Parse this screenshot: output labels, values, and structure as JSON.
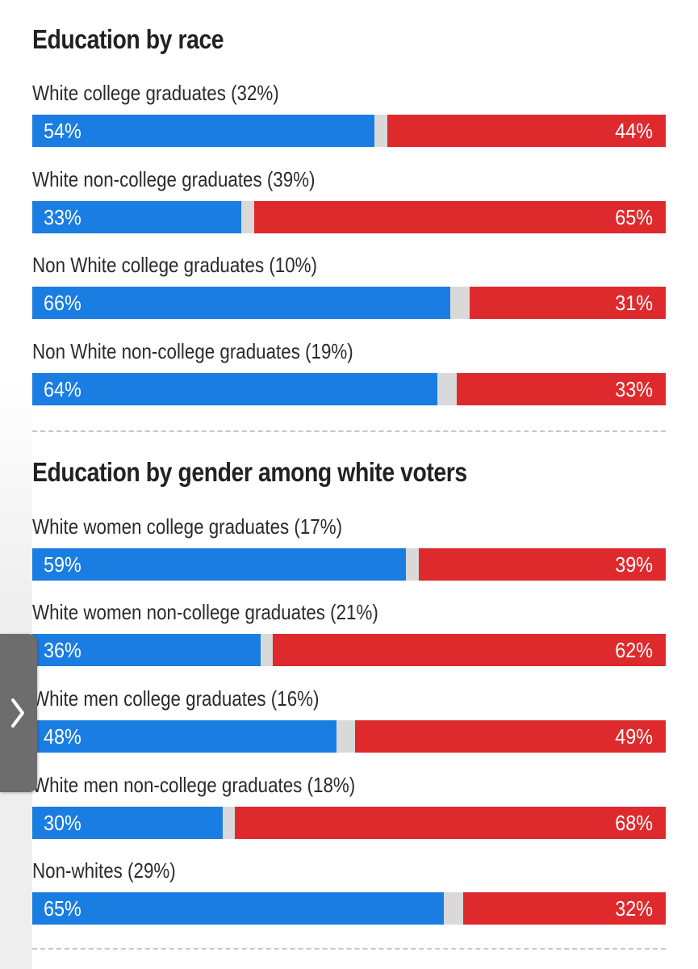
{
  "colors": {
    "democrat": "#1a7de2",
    "republican": "#de2a2d",
    "other": "#d9d9d9",
    "tab": "#6d6d6d"
  },
  "side_tab": {
    "icon": "chevron-right-icon"
  },
  "chart_data": [
    {
      "type": "bar",
      "orientation": "horizontal-stacked",
      "title": "Education by race",
      "categories": [
        "White college graduates (32%)",
        "White non-college graduates (39%)",
        "Non White college graduates (10%)",
        "Non White non-college graduates (19%)"
      ],
      "series": [
        {
          "values": [
            54,
            33,
            66,
            64
          ],
          "labels": [
            "54%",
            "33%",
            "66%",
            "64%"
          ]
        },
        {
          "values": [
            44,
            65,
            31,
            33
          ],
          "labels": [
            "44%",
            "65%",
            "31%",
            "33%"
          ]
        }
      ],
      "xlim": [
        0,
        100
      ]
    },
    {
      "type": "bar",
      "orientation": "horizontal-stacked",
      "title": "Education by gender among white voters",
      "categories": [
        "White women college graduates (17%)",
        "White women non-college graduates (21%)",
        "White men college graduates (16%)",
        "White men non-college graduates (18%)",
        "Non-whites (29%)"
      ],
      "series": [
        {
          "values": [
            59,
            36,
            48,
            30,
            65
          ],
          "labels": [
            "59%",
            "36%",
            "48%",
            "30%",
            "65%"
          ]
        },
        {
          "values": [
            39,
            62,
            49,
            68,
            32
          ],
          "labels": [
            "39%",
            "62%",
            "49%",
            "68%",
            "32%"
          ]
        }
      ],
      "xlim": [
        0,
        100
      ]
    }
  ]
}
